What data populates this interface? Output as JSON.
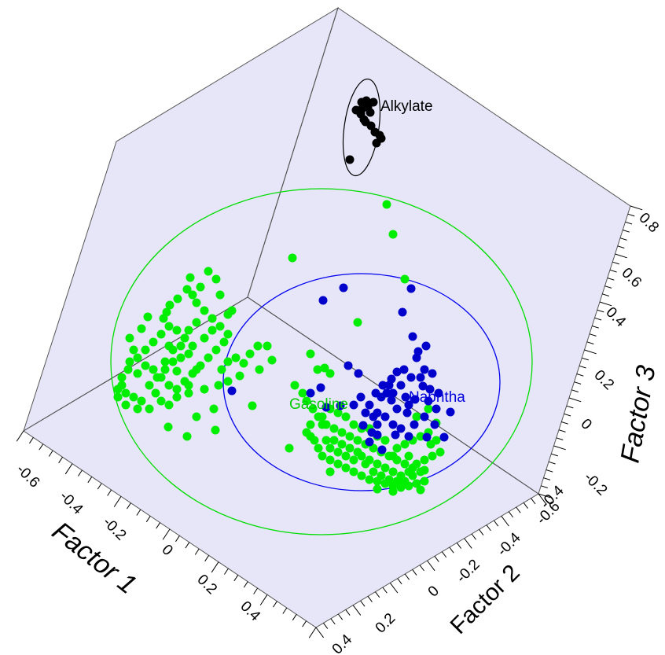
{
  "chart_data": {
    "type": "scatter",
    "projection": "3d",
    "axes": {
      "x": {
        "label": "Factor 1",
        "ticks": [
          "-0.6",
          "-0.4",
          "-0.2",
          "0",
          "0.2",
          "0.4"
        ]
      },
      "y": {
        "label": "Factor 2",
        "ticks": [
          "-0.6",
          "-0.4",
          "-0.2",
          "0",
          "0.2",
          "0.4"
        ]
      },
      "z": {
        "label": "Factor 3",
        "ticks": [
          "-0.4",
          "-0.2",
          "0",
          "0.2",
          "0.4",
          "0.6",
          "0.8"
        ]
      }
    },
    "series": [
      {
        "name": "Alkylate",
        "color": "#000000",
        "ellipse": true,
        "points": [
          [
            460,
            130
          ],
          [
            466,
            128
          ],
          [
            453,
            140
          ],
          [
            459,
            145
          ],
          [
            463,
            152
          ],
          [
            468,
            136
          ],
          [
            475,
            130
          ],
          [
            471,
            143
          ],
          [
            477,
            168
          ],
          [
            483,
            172
          ],
          [
            479,
            182
          ],
          [
            485,
            176
          ],
          [
            465,
            155
          ],
          [
            461,
            138
          ],
          [
            445,
            203
          ],
          [
            472,
            160
          ]
        ]
      },
      {
        "name": "Naphtha",
        "color": "#0000cc",
        "ellipse": true,
        "points": [
          [
            437,
            366
          ],
          [
            411,
            382
          ],
          [
            523,
            367
          ],
          [
            512,
            397
          ],
          [
            525,
            428
          ],
          [
            542,
            440
          ],
          [
            532,
            447
          ],
          [
            550,
            475
          ],
          [
            538,
            491
          ],
          [
            528,
            508
          ],
          [
            547,
            495
          ],
          [
            518,
            525
          ],
          [
            558,
            500
          ],
          [
            573,
            524
          ],
          [
            565,
            556
          ],
          [
            543,
            556
          ],
          [
            527,
            540
          ],
          [
            503,
            553
          ],
          [
            486,
            572
          ],
          [
            470,
            562
          ],
          [
            480,
            553
          ],
          [
            462,
            541
          ],
          [
            498,
            509
          ],
          [
            492,
            500
          ],
          [
            487,
            490
          ],
          [
            498,
            482
          ],
          [
            505,
            473
          ],
          [
            514,
            470
          ],
          [
            523,
            480
          ],
          [
            510,
            490
          ],
          [
            516,
            505
          ],
          [
            505,
            520
          ],
          [
            470,
            515
          ],
          [
            480,
            525
          ],
          [
            490,
            530
          ],
          [
            500,
            540
          ],
          [
            510,
            545
          ],
          [
            520,
            555
          ],
          [
            480,
            540
          ],
          [
            485,
            505
          ],
          [
            495,
            490
          ],
          [
            530,
            455
          ],
          [
            540,
            470
          ],
          [
            535,
            480
          ],
          [
            545,
            510
          ],
          [
            555,
            520
          ],
          [
            540,
            530
          ],
          [
            553,
            540
          ],
          [
            520,
            515
          ],
          [
            500,
            500
          ],
          [
            478,
            500
          ],
          [
            475,
            530
          ],
          [
            473,
            550
          ],
          [
            465,
            525
          ],
          [
            459,
            505
          ],
          [
            450,
            515
          ],
          [
            443,
            465
          ],
          [
            456,
            475
          ],
          [
            433,
            516
          ],
          [
            408,
            493
          ],
          [
            395,
            500
          ],
          [
            415,
            518
          ],
          [
            295,
            497
          ]
        ]
      },
      {
        "name": "Gasoline",
        "color": "#00ee00",
        "ellipse": true,
        "points": [
          [
            492,
            260
          ],
          [
            500,
            298
          ],
          [
            372,
            328
          ],
          [
            515,
            355
          ],
          [
            455,
            410
          ],
          [
            265,
            345
          ],
          [
            242,
            353
          ],
          [
            238,
            368
          ],
          [
            226,
            380
          ],
          [
            216,
            388
          ],
          [
            212,
            397
          ],
          [
            208,
            405
          ],
          [
            188,
            403
          ],
          [
            180,
            418
          ],
          [
            165,
            430
          ],
          [
            170,
            445
          ],
          [
            165,
            460
          ],
          [
            155,
            490
          ],
          [
            150,
            495
          ],
          [
            160,
            500
          ],
          [
            170,
            505
          ],
          [
            180,
            510
          ],
          [
            190,
            490
          ],
          [
            200,
            480
          ],
          [
            210,
            470
          ],
          [
            220,
            460
          ],
          [
            230,
            455
          ],
          [
            240,
            450
          ],
          [
            245,
            440
          ],
          [
            235,
            430
          ],
          [
            225,
            420
          ],
          [
            215,
            415
          ],
          [
            205,
            425
          ],
          [
            195,
            435
          ],
          [
            185,
            445
          ],
          [
            175,
            455
          ],
          [
            185,
            465
          ],
          [
            195,
            470
          ],
          [
            205,
            480
          ],
          [
            215,
            490
          ],
          [
            225,
            495
          ],
          [
            235,
            485
          ],
          [
            245,
            475
          ],
          [
            255,
            465
          ],
          [
            265,
            455
          ],
          [
            275,
            445
          ],
          [
            285,
            435
          ],
          [
            290,
            425
          ],
          [
            280,
            415
          ],
          [
            270,
            405
          ],
          [
            260,
            395
          ],
          [
            250,
            385
          ],
          [
            245,
            375
          ],
          [
            255,
            365
          ],
          [
            275,
            355
          ],
          [
            280,
            375
          ],
          [
            290,
            400
          ],
          [
            295,
            395
          ],
          [
            270,
            420
          ],
          [
            260,
            430
          ],
          [
            250,
            470
          ],
          [
            240,
            500
          ],
          [
            225,
            505
          ],
          [
            215,
            515
          ],
          [
            205,
            510
          ],
          [
            198,
            500
          ],
          [
            190,
            520
          ],
          [
            175,
            520
          ],
          [
            160,
            515
          ],
          [
            150,
            505
          ],
          [
            155,
            480
          ],
          [
            163,
            470
          ],
          [
            175,
            475
          ],
          [
            210,
            460
          ],
          [
            220,
            445
          ],
          [
            230,
            440
          ],
          [
            240,
            420
          ],
          [
            250,
            410
          ],
          [
            215,
            440
          ],
          [
            225,
            472
          ],
          [
            240,
            490
          ],
          [
            260,
            495
          ],
          [
            278,
            490
          ],
          [
            282,
            470
          ],
          [
            290,
            460
          ],
          [
            300,
            455
          ],
          [
            310,
            462
          ],
          [
            318,
            450
          ],
          [
            328,
            440
          ],
          [
            340,
            440
          ],
          [
            346,
            458
          ],
          [
            330,
            470
          ],
          [
            305,
            478
          ],
          [
            290,
            485
          ],
          [
            272,
            520
          ],
          [
            250,
            530
          ],
          [
            238,
            555
          ],
          [
            214,
            543
          ],
          [
            321,
            516
          ],
          [
            274,
            547
          ],
          [
            395,
            450
          ],
          [
            404,
            470
          ],
          [
            413,
            468
          ],
          [
            420,
            475
          ],
          [
            375,
            490
          ],
          [
            385,
            500
          ],
          [
            390,
            510
          ],
          [
            398,
            520
          ],
          [
            405,
            530
          ],
          [
            395,
            540
          ],
          [
            390,
            550
          ],
          [
            400,
            560
          ],
          [
            405,
            570
          ],
          [
            410,
            580
          ],
          [
            420,
            585
          ],
          [
            430,
            590
          ],
          [
            440,
            595
          ],
          [
            450,
            600
          ],
          [
            460,
            605
          ],
          [
            470,
            610
          ],
          [
            480,
            612
          ],
          [
            490,
            615
          ],
          [
            500,
            618
          ],
          [
            510,
            620
          ],
          [
            520,
            618
          ],
          [
            530,
            615
          ],
          [
            540,
            612
          ],
          [
            535,
            600
          ],
          [
            525,
            595
          ],
          [
            515,
            590
          ],
          [
            505,
            585
          ],
          [
            495,
            580
          ],
          [
            485,
            575
          ],
          [
            475,
            570
          ],
          [
            465,
            565
          ],
          [
            455,
            560
          ],
          [
            445,
            555
          ],
          [
            435,
            550
          ],
          [
            425,
            545
          ],
          [
            415,
            540
          ],
          [
            410,
            530
          ],
          [
            420,
            520
          ],
          [
            430,
            525
          ],
          [
            440,
            530
          ],
          [
            450,
            540
          ],
          [
            460,
            545
          ],
          [
            470,
            585
          ],
          [
            480,
            590
          ],
          [
            490,
            595
          ],
          [
            500,
            600
          ],
          [
            510,
            605
          ],
          [
            520,
            600
          ],
          [
            530,
            590
          ],
          [
            540,
            585
          ],
          [
            550,
            580
          ],
          [
            548,
            565
          ],
          [
            555,
            560
          ],
          [
            545,
            550
          ],
          [
            535,
            555
          ],
          [
            525,
            560
          ],
          [
            515,
            565
          ],
          [
            505,
            570
          ],
          [
            500,
            580
          ],
          [
            490,
            560
          ],
          [
            480,
            555
          ],
          [
            470,
            545
          ],
          [
            460,
            580
          ],
          [
            450,
            585
          ],
          [
            440,
            580
          ],
          [
            430,
            575
          ],
          [
            420,
            570
          ],
          [
            415,
            560
          ],
          [
            425,
            560
          ],
          [
            435,
            565
          ],
          [
            445,
            570
          ],
          [
            455,
            575
          ],
          [
            465,
            590
          ],
          [
            475,
            600
          ],
          [
            485,
            605
          ],
          [
            495,
            610
          ],
          [
            505,
            612
          ],
          [
            368,
            570
          ],
          [
            540,
            598
          ],
          [
            535,
            623
          ],
          [
            480,
            622
          ],
          [
            500,
            625
          ],
          [
            515,
            612
          ],
          [
            525,
            605
          ],
          [
            545,
            520
          ],
          [
            530,
            530
          ],
          [
            555,
            538
          ],
          [
            560,
            575
          ],
          [
            520,
            580
          ],
          [
            410,
            540
          ],
          [
            395,
            555
          ],
          [
            420,
            600
          ]
        ]
      }
    ]
  }
}
